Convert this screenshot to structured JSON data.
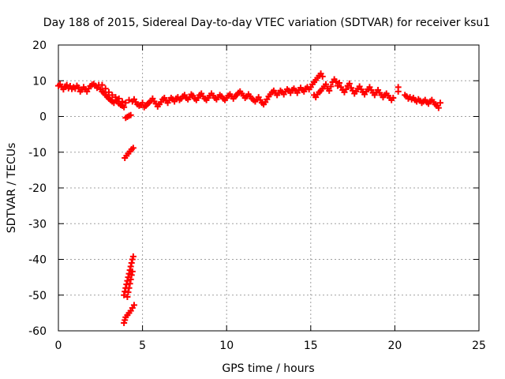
{
  "chart_data": {
    "type": "scatter",
    "title": "Day 188 of 2015, Sidereal Day-to-day VTEC variation (SDTVAR) for receiver ksu1",
    "xlabel": "GPS time / hours",
    "ylabel": "SDTVAR / TECUs",
    "xlim": [
      0,
      25
    ],
    "ylim": [
      -60,
      20
    ],
    "xticks": [
      0,
      5,
      10,
      15,
      20,
      25
    ],
    "yticks": [
      -60,
      -50,
      -40,
      -30,
      -20,
      -10,
      0,
      10,
      20
    ],
    "grid": true,
    "marker": "+",
    "series": [
      {
        "name": "SDTVAR",
        "color": "#ff0000",
        "points": [
          [
            0.0,
            8.6
          ],
          [
            0.1,
            9.0
          ],
          [
            0.2,
            8.2
          ],
          [
            0.3,
            7.6
          ],
          [
            0.4,
            8.4
          ],
          [
            0.5,
            8.8
          ],
          [
            0.6,
            7.9
          ],
          [
            0.7,
            8.5
          ],
          [
            0.8,
            7.7
          ],
          [
            0.9,
            8.2
          ],
          [
            1.0,
            7.8
          ],
          [
            1.1,
            8.6
          ],
          [
            1.2,
            8.1
          ],
          [
            1.3,
            7.0
          ],
          [
            1.4,
            7.5
          ],
          [
            1.5,
            8.2
          ],
          [
            1.6,
            7.6
          ],
          [
            1.7,
            7.0
          ],
          [
            1.8,
            7.8
          ],
          [
            1.9,
            8.5
          ],
          [
            2.0,
            8.9
          ],
          [
            2.1,
            9.1
          ],
          [
            2.2,
            8.6
          ],
          [
            2.3,
            8.0
          ],
          [
            2.4,
            8.8
          ],
          [
            2.5,
            7.6
          ],
          [
            2.6,
            7.0
          ],
          [
            2.7,
            6.6
          ],
          [
            2.8,
            6.0
          ],
          [
            2.9,
            5.5
          ],
          [
            3.0,
            5.0
          ],
          [
            3.1,
            4.6
          ],
          [
            3.2,
            4.2
          ],
          [
            3.3,
            3.8
          ],
          [
            3.4,
            4.6
          ],
          [
            3.5,
            4.2
          ],
          [
            3.6,
            3.6
          ],
          [
            3.7,
            3.2
          ],
          [
            3.8,
            3.0
          ],
          [
            3.9,
            2.6
          ],
          [
            2.6,
            8.8
          ],
          [
            2.8,
            7.8
          ],
          [
            3.0,
            6.8
          ],
          [
            3.2,
            6.0
          ],
          [
            3.4,
            5.4
          ],
          [
            3.6,
            5.0
          ],
          [
            3.8,
            4.2
          ],
          [
            4.0,
            3.8
          ],
          [
            4.2,
            4.6
          ],
          [
            4.4,
            4.2
          ],
          [
            4.5,
            4.8
          ],
          [
            4.6,
            4.0
          ],
          [
            4.7,
            3.4
          ],
          [
            4.8,
            3.0
          ],
          [
            4.9,
            3.2
          ],
          [
            5.0,
            3.8
          ],
          [
            5.1,
            2.6
          ],
          [
            5.2,
            3.0
          ],
          [
            5.3,
            3.5
          ],
          [
            5.4,
            3.9
          ],
          [
            5.5,
            4.4
          ],
          [
            5.6,
            5.0
          ],
          [
            5.7,
            4.2
          ],
          [
            5.8,
            3.6
          ],
          [
            5.9,
            2.8
          ],
          [
            6.0,
            3.4
          ],
          [
            6.1,
            4.0
          ],
          [
            6.2,
            4.8
          ],
          [
            6.3,
            5.2
          ],
          [
            6.4,
            4.4
          ],
          [
            6.5,
            3.8
          ],
          [
            6.6,
            4.6
          ],
          [
            6.7,
            5.2
          ],
          [
            6.8,
            4.8
          ],
          [
            6.9,
            4.2
          ],
          [
            7.0,
            5.0
          ],
          [
            7.1,
            5.4
          ],
          [
            7.2,
            4.6
          ],
          [
            7.3,
            5.0
          ],
          [
            7.4,
            5.6
          ],
          [
            7.5,
            6.0
          ],
          [
            7.6,
            5.2
          ],
          [
            7.7,
            4.8
          ],
          [
            7.8,
            5.4
          ],
          [
            7.9,
            6.2
          ],
          [
            8.0,
            5.8
          ],
          [
            8.1,
            5.0
          ],
          [
            8.2,
            4.6
          ],
          [
            8.3,
            5.2
          ],
          [
            8.4,
            6.0
          ],
          [
            8.5,
            6.4
          ],
          [
            8.6,
            5.6
          ],
          [
            8.7,
            5.0
          ],
          [
            8.8,
            4.6
          ],
          [
            8.9,
            5.2
          ],
          [
            9.0,
            5.8
          ],
          [
            9.1,
            6.4
          ],
          [
            9.2,
            5.8
          ],
          [
            9.3,
            5.2
          ],
          [
            9.4,
            4.8
          ],
          [
            9.5,
            5.4
          ],
          [
            9.6,
            6.0
          ],
          [
            9.7,
            5.6
          ],
          [
            9.8,
            5.0
          ],
          [
            9.9,
            4.6
          ],
          [
            10.0,
            5.2
          ],
          [
            10.1,
            5.8
          ],
          [
            10.2,
            6.2
          ],
          [
            10.3,
            5.6
          ],
          [
            10.4,
            5.0
          ],
          [
            10.5,
            5.6
          ],
          [
            10.6,
            6.0
          ],
          [
            10.7,
            6.6
          ],
          [
            10.8,
            7.0
          ],
          [
            10.9,
            6.4
          ],
          [
            11.0,
            5.8
          ],
          [
            11.1,
            5.2
          ],
          [
            11.2,
            5.6
          ],
          [
            11.3,
            6.2
          ],
          [
            11.4,
            5.6
          ],
          [
            11.5,
            5.0
          ],
          [
            11.6,
            4.6
          ],
          [
            11.7,
            4.2
          ],
          [
            11.8,
            4.8
          ],
          [
            11.9,
            5.4
          ],
          [
            12.0,
            4.6
          ],
          [
            12.1,
            3.8
          ],
          [
            12.2,
            3.4
          ],
          [
            12.3,
            4.0
          ],
          [
            12.4,
            4.8
          ],
          [
            12.5,
            5.6
          ],
          [
            12.6,
            6.2
          ],
          [
            12.7,
            6.8
          ],
          [
            12.8,
            7.2
          ],
          [
            12.9,
            6.6
          ],
          [
            13.0,
            6.0
          ],
          [
            13.1,
            6.6
          ],
          [
            13.2,
            7.2
          ],
          [
            13.3,
            6.8
          ],
          [
            13.4,
            6.2
          ],
          [
            13.5,
            7.0
          ],
          [
            13.6,
            7.6
          ],
          [
            13.7,
            7.2
          ],
          [
            13.8,
            6.6
          ],
          [
            13.9,
            7.4
          ],
          [
            14.0,
            7.8
          ],
          [
            14.1,
            7.2
          ],
          [
            14.2,
            6.6
          ],
          [
            14.3,
            7.4
          ],
          [
            14.4,
            8.0
          ],
          [
            14.5,
            7.4
          ],
          [
            14.6,
            7.0
          ],
          [
            14.7,
            7.8
          ],
          [
            14.8,
            8.2
          ],
          [
            14.9,
            7.6
          ],
          [
            15.0,
            8.2
          ],
          [
            15.1,
            9.0
          ],
          [
            15.2,
            9.6
          ],
          [
            15.3,
            10.2
          ],
          [
            15.4,
            10.8
          ],
          [
            15.5,
            11.4
          ],
          [
            15.6,
            12.0
          ],
          [
            15.7,
            11.2
          ],
          [
            15.2,
            6.0
          ],
          [
            15.3,
            5.4
          ],
          [
            15.4,
            6.2
          ],
          [
            15.5,
            6.8
          ],
          [
            15.6,
            7.2
          ],
          [
            15.7,
            7.8
          ],
          [
            15.8,
            8.4
          ],
          [
            15.9,
            9.0
          ],
          [
            16.0,
            7.8
          ],
          [
            16.1,
            7.2
          ],
          [
            16.2,
            8.4
          ],
          [
            16.3,
            9.6
          ],
          [
            16.4,
            10.4
          ],
          [
            16.5,
            9.8
          ],
          [
            16.6,
            8.6
          ],
          [
            16.7,
            9.4
          ],
          [
            16.8,
            8.2
          ],
          [
            16.9,
            7.4
          ],
          [
            17.0,
            6.8
          ],
          [
            17.1,
            7.6
          ],
          [
            17.2,
            8.6
          ],
          [
            17.3,
            9.2
          ],
          [
            17.4,
            8.0
          ],
          [
            17.5,
            7.2
          ],
          [
            17.6,
            6.4
          ],
          [
            17.7,
            7.0
          ],
          [
            17.8,
            7.8
          ],
          [
            17.9,
            8.4
          ],
          [
            18.0,
            7.6
          ],
          [
            18.1,
            6.8
          ],
          [
            18.2,
            6.2
          ],
          [
            18.3,
            7.0
          ],
          [
            18.4,
            7.6
          ],
          [
            18.5,
            8.2
          ],
          [
            18.6,
            7.4
          ],
          [
            18.7,
            6.6
          ],
          [
            18.8,
            6.0
          ],
          [
            18.9,
            6.8
          ],
          [
            19.0,
            7.4
          ],
          [
            19.1,
            6.6
          ],
          [
            19.2,
            6.0
          ],
          [
            19.3,
            5.4
          ],
          [
            19.4,
            6.0
          ],
          [
            19.5,
            6.4
          ],
          [
            19.6,
            5.8
          ],
          [
            19.7,
            5.2
          ],
          [
            19.8,
            4.6
          ],
          [
            19.9,
            5.2
          ],
          [
            20.2,
            8.2
          ],
          [
            20.2,
            7.0
          ],
          [
            20.6,
            6.0
          ],
          [
            20.7,
            5.6
          ],
          [
            20.8,
            5.0
          ],
          [
            20.9,
            5.4
          ],
          [
            21.0,
            4.8
          ],
          [
            21.1,
            5.2
          ],
          [
            21.2,
            4.6
          ],
          [
            21.3,
            4.2
          ],
          [
            21.4,
            4.8
          ],
          [
            21.5,
            4.4
          ],
          [
            21.6,
            3.8
          ],
          [
            21.7,
            4.2
          ],
          [
            21.8,
            4.6
          ],
          [
            21.9,
            4.0
          ],
          [
            22.0,
            3.6
          ],
          [
            22.1,
            4.2
          ],
          [
            22.2,
            4.6
          ],
          [
            22.3,
            4.0
          ],
          [
            22.4,
            3.4
          ],
          [
            22.5,
            3.0
          ],
          [
            22.6,
            2.4
          ],
          [
            22.7,
            3.8
          ],
          [
            4.0,
            -0.4
          ],
          [
            4.1,
            -0.1
          ],
          [
            4.2,
            0.2
          ],
          [
            4.3,
            0.4
          ],
          [
            3.95,
            -11.6
          ],
          [
            4.05,
            -11.0
          ],
          [
            4.15,
            -10.4
          ],
          [
            4.25,
            -9.8
          ],
          [
            4.35,
            -9.2
          ],
          [
            4.45,
            -8.8
          ],
          [
            3.9,
            -50.0
          ],
          [
            3.95,
            -49.0
          ],
          [
            4.0,
            -48.0
          ],
          [
            4.05,
            -47.0
          ],
          [
            4.1,
            -46.0
          ],
          [
            4.15,
            -45.0
          ],
          [
            4.2,
            -44.0
          ],
          [
            4.25,
            -43.0
          ],
          [
            4.3,
            -42.0
          ],
          [
            4.35,
            -41.0
          ],
          [
            4.4,
            -40.0
          ],
          [
            4.45,
            -39.2
          ],
          [
            4.1,
            -50.5
          ],
          [
            4.15,
            -49.2
          ],
          [
            4.2,
            -48.0
          ],
          [
            4.25,
            -46.8
          ],
          [
            4.3,
            -45.6
          ],
          [
            4.35,
            -44.4
          ],
          [
            4.4,
            -43.4
          ],
          [
            3.9,
            -57.8
          ],
          [
            3.95,
            -57.0
          ],
          [
            4.0,
            -56.2
          ],
          [
            4.1,
            -55.6
          ],
          [
            4.2,
            -55.0
          ],
          [
            4.3,
            -54.4
          ],
          [
            4.4,
            -53.6
          ],
          [
            4.5,
            -52.8
          ]
        ]
      }
    ]
  }
}
